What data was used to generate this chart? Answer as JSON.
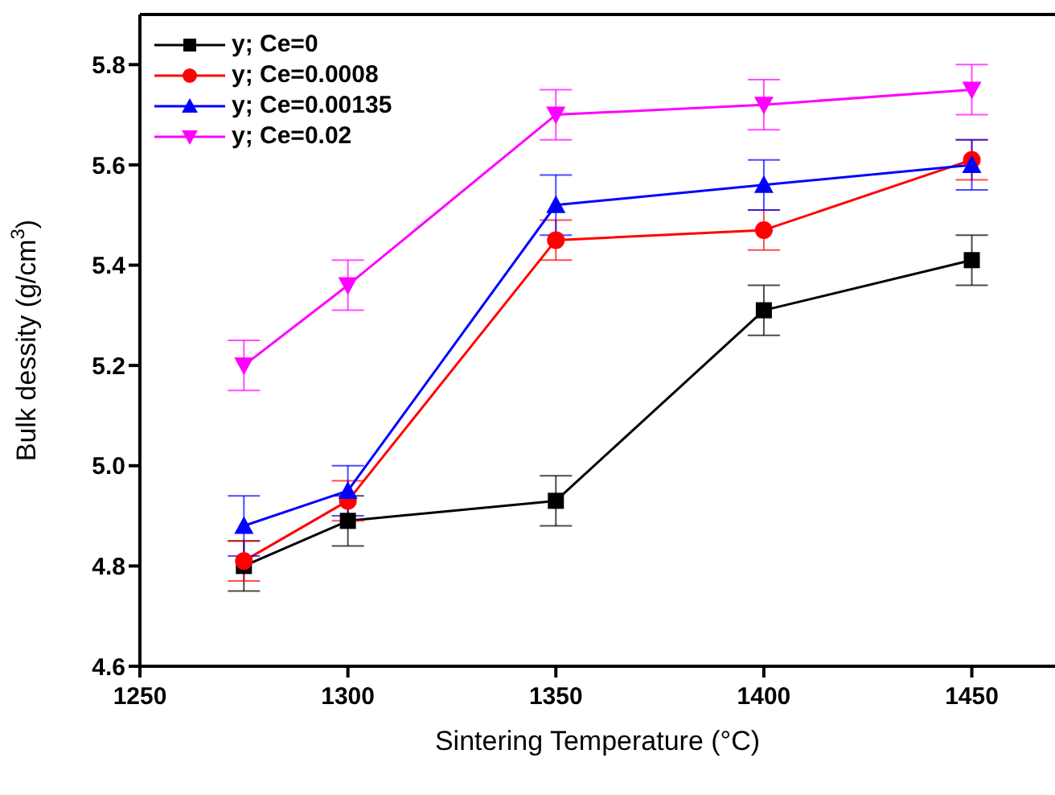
{
  "chart_data": {
    "type": "line",
    "xlabel": "Sintering Temperature (°C)",
    "ylabel": "Bulk dessity (g/cm$^{3}$)",
    "x": [
      1275,
      1300,
      1350,
      1400,
      1450
    ],
    "series": [
      {
        "name": "y; Ce=0",
        "color": "#000000",
        "marker": "square",
        "values": [
          4.8,
          4.89,
          4.93,
          5.31,
          5.41
        ],
        "errors": [
          0.05,
          0.05,
          0.05,
          0.05,
          0.05
        ]
      },
      {
        "name": "y; Ce=0.0008",
        "color": "#ff0000",
        "marker": "circle",
        "values": [
          4.81,
          4.93,
          5.45,
          5.47,
          5.61
        ],
        "errors": [
          0.04,
          0.04,
          0.04,
          0.04,
          0.04
        ]
      },
      {
        "name": "y; Ce=0.00135",
        "color": "#0000ff",
        "marker": "triangle",
        "values": [
          4.88,
          4.95,
          5.52,
          5.56,
          5.6
        ],
        "errors": [
          0.06,
          0.05,
          0.06,
          0.05,
          0.05
        ]
      },
      {
        "name": "y; Ce=0.02",
        "color": "#ff00ff",
        "marker": "triangle-down",
        "values": [
          5.2,
          5.36,
          5.7,
          5.72,
          5.75
        ],
        "errors": [
          0.05,
          0.05,
          0.05,
          0.05,
          0.05
        ]
      }
    ],
    "xlim": [
      1250,
      1470
    ],
    "xticks": [
      1250,
      1300,
      1350,
      1400,
      1450
    ],
    "ylim": [
      4.6,
      5.9
    ],
    "yticks": [
      4.6,
      4.8,
      {
        "value": 5,
        "label": "5.0"
      },
      5.2,
      5.4,
      5.6,
      5.8
    ],
    "legend": "top left",
    "grid": false,
    "line_style": "solid"
  }
}
